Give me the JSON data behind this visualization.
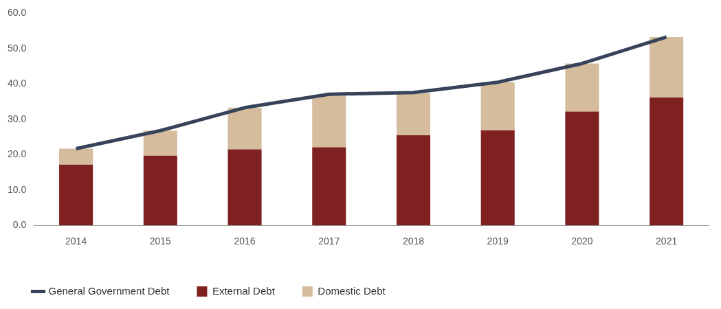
{
  "chart_data": {
    "type": "bar",
    "categories": [
      "2014",
      "2015",
      "2016",
      "2017",
      "2018",
      "2019",
      "2020",
      "2021"
    ],
    "series": [
      {
        "name": "External Debt",
        "color": "#7f2121",
        "values": [
          17.2,
          19.7,
          21.5,
          22.1,
          25.5,
          26.9,
          32.2,
          36.2
        ]
      },
      {
        "name": "Domestic Debt",
        "color": "#d4bc9c",
        "values": [
          4.5,
          7.1,
          11.8,
          14.8,
          11.9,
          13.6,
          13.6,
          17.1
        ]
      },
      {
        "name": "General Government Debt",
        "type": "line",
        "color": "#36435a",
        "values": [
          21.7,
          26.8,
          33.3,
          37.1,
          37.6,
          40.5,
          45.8,
          53.3
        ]
      }
    ],
    "stacked": true,
    "ylim": [
      0,
      60
    ],
    "yticks": [
      {
        "value": 0,
        "label": "0.0"
      },
      {
        "value": 10,
        "label": "10.0"
      },
      {
        "value": 20,
        "label": "20.0"
      },
      {
        "value": 30,
        "label": "30.0"
      },
      {
        "value": 40,
        "label": "40.0"
      },
      {
        "value": 50,
        "label": "50.0"
      },
      {
        "value": 60,
        "label": "60.0"
      }
    ],
    "grid": false,
    "legend": "bottom left"
  }
}
